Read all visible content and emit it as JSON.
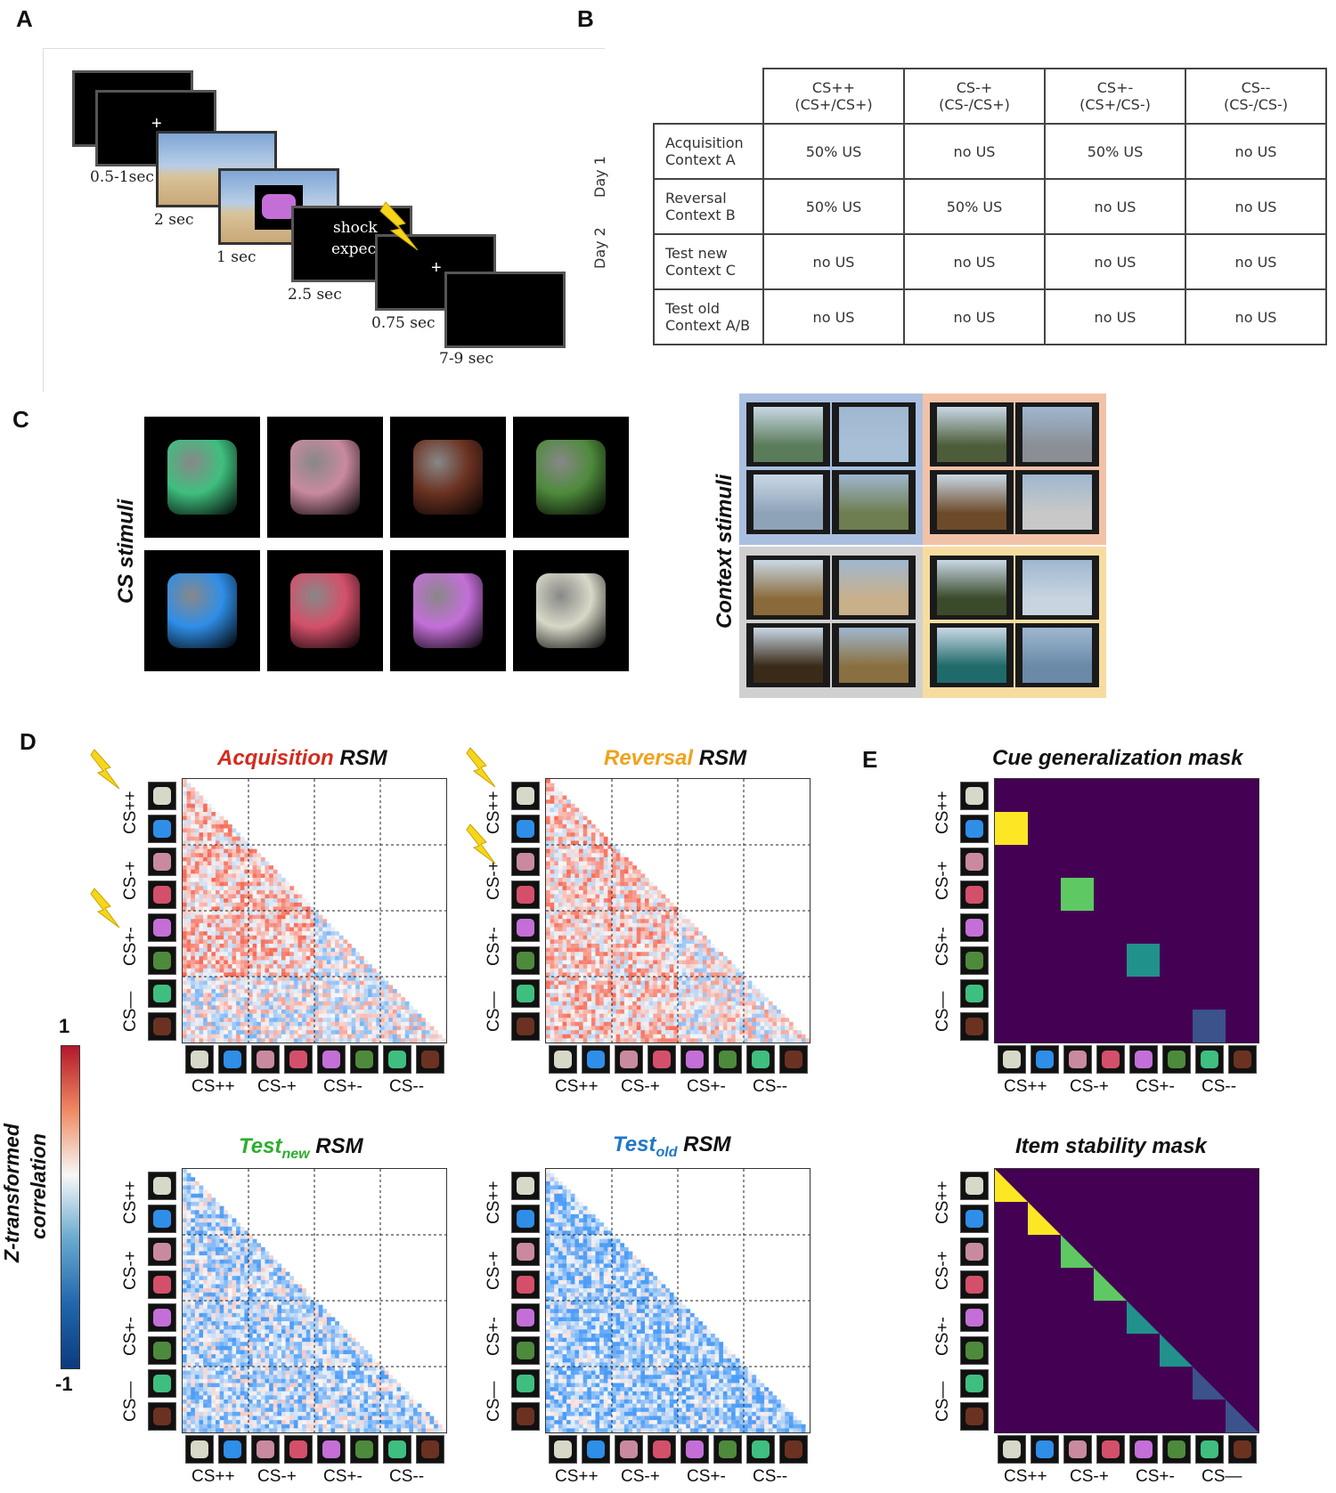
{
  "panels": {
    "a": "A",
    "b": "B",
    "c": "C",
    "d": "D",
    "e": "E"
  },
  "panel_a": {
    "times": [
      "0.5-1sec",
      "2 sec",
      "1 sec",
      "2.5 sec",
      "0.75 sec",
      "7-9 sec"
    ],
    "shock_text_line1": "shock",
    "shock_text_line2": "expec",
    "fixation": "+"
  },
  "panel_b": {
    "columns": [
      {
        "line1": "CS++",
        "line2": "(CS+/CS+)"
      },
      {
        "line1": "CS-+",
        "line2": "(CS-/CS+)"
      },
      {
        "line1": "CS+-",
        "line2": "(CS+/CS-)"
      },
      {
        "line1": "CS--",
        "line2": "(CS-/CS-)"
      }
    ],
    "rows": [
      {
        "line1": "Acquisition",
        "line2": "Context A",
        "cells": [
          "50% US",
          "no US",
          "50% US",
          "no US"
        ]
      },
      {
        "line1": "Reversal",
        "line2": "Context B",
        "cells": [
          "50% US",
          "50% US",
          "no US",
          "no US"
        ]
      },
      {
        "line1": "Test new",
        "line2": "Context C",
        "cells": [
          "no US",
          "no US",
          "no US",
          "no US"
        ]
      },
      {
        "line1": "Test old",
        "line2": "Context A/B",
        "cells": [
          "no US",
          "no US",
          "no US",
          "no US"
        ]
      }
    ],
    "day1": "Day 1",
    "day2": "Day 2"
  },
  "panel_c": {
    "cs_label": "CS stimuli",
    "context_label": "Context stimuli",
    "cs_items": [
      "kettle-icon",
      "hairdryer-icon",
      "tv-icon",
      "phone-icon",
      "fan-icon",
      "coffee-maker-icon",
      "toaster-icon",
      "stove-icon"
    ],
    "context_quadrant_colors": [
      "#aabfe0",
      "#f2c2a8",
      "#d0d0d0",
      "#f7dca0"
    ]
  },
  "matrices": {
    "acq": {
      "title_colored": "Acquisition",
      "title_rest": " RSM",
      "color": "#d42a1e"
    },
    "rev": {
      "title_colored": "Reversal",
      "title_rest": " RSM",
      "color": "#f0a21c"
    },
    "tnew": {
      "title_colored": "Test",
      "title_sub": "new",
      "title_rest": " RSM",
      "color": "#2fae2f"
    },
    "told": {
      "title_colored": "Test",
      "title_sub": "old",
      "title_rest": " RSM",
      "color": "#1f78c8"
    },
    "cue": {
      "title": "Cue generalization mask"
    },
    "item": {
      "title": "Item stability mask"
    }
  },
  "axis": {
    "x_ticks": [
      "CS++",
      "CS-+",
      "CS+-",
      "CS--"
    ],
    "y_ticks": [
      "CS++",
      "CS-+",
      "CS+-",
      "CS—"
    ],
    "x_ticks_item": [
      "CS++",
      "CS-+",
      "CS+-",
      "CS—"
    ]
  },
  "colorbar": {
    "max": "1",
    "min": "-1",
    "label_line1": "Z-transformed",
    "label_line2": "correlation",
    "colors": [
      "#b2182b",
      "#ef8a62",
      "#f7f7f7",
      "#67a9cf",
      "#2166ac",
      "#0b3c7d"
    ]
  },
  "mask_colors": {
    "bg": "#440154",
    "levels": [
      "#fde725",
      "#5ec962",
      "#21918c",
      "#3b528b"
    ]
  }
}
